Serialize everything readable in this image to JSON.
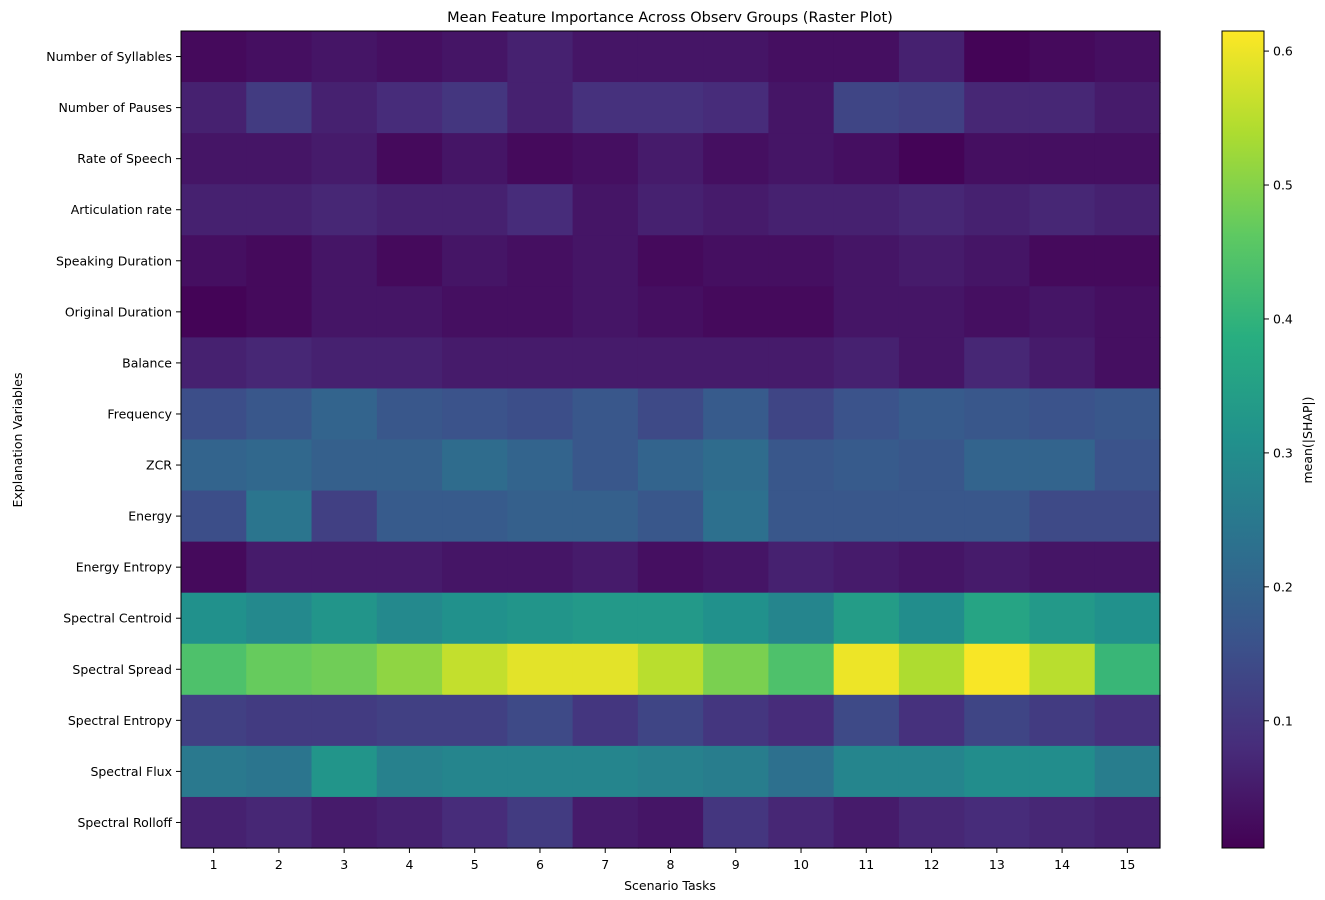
{
  "chart_data": {
    "type": "heatmap",
    "title": "Mean Feature Importance Across Observ Groups (Raster Plot)",
    "xlabel": "Scenario Tasks",
    "ylabel": "Explanation Variables",
    "colorbar_label": "mean(|SHAP|)",
    "colormap": "viridis",
    "vmin": 0.005,
    "vmax": 0.615,
    "colorbar_ticks": [
      0.1,
      0.2,
      0.3,
      0.4,
      0.5,
      0.6
    ],
    "colorbar_tick_labels": [
      "0.1",
      "0.2",
      "0.3",
      "0.4",
      "0.5",
      "0.6"
    ],
    "x": [
      "1",
      "2",
      "3",
      "4",
      "5",
      "6",
      "7",
      "8",
      "9",
      "10",
      "11",
      "12",
      "13",
      "14",
      "15"
    ],
    "y": [
      "Number of Syllables",
      "Number of Pauses",
      "Rate of Speech",
      "Articulation rate",
      "Speaking Duration",
      "Original Duration",
      "Balance",
      "Frequency",
      "ZCR",
      "Energy",
      "Energy Entropy",
      "Spectral Centroid",
      "Spectral Spread",
      "Spectral Entropy",
      "Spectral Flux",
      "Spectral Rolloff"
    ],
    "values": [
      [
        0.02,
        0.03,
        0.04,
        0.03,
        0.04,
        0.06,
        0.04,
        0.04,
        0.04,
        0.03,
        0.03,
        0.06,
        0.01,
        0.02,
        0.03
      ],
      [
        0.06,
        0.11,
        0.06,
        0.08,
        0.1,
        0.06,
        0.09,
        0.09,
        0.08,
        0.04,
        0.13,
        0.12,
        0.07,
        0.07,
        0.05
      ],
      [
        0.04,
        0.04,
        0.05,
        0.02,
        0.04,
        0.02,
        0.03,
        0.05,
        0.03,
        0.04,
        0.03,
        0.01,
        0.03,
        0.03,
        0.03
      ],
      [
        0.06,
        0.06,
        0.07,
        0.06,
        0.06,
        0.08,
        0.04,
        0.06,
        0.05,
        0.06,
        0.06,
        0.07,
        0.06,
        0.07,
        0.06
      ],
      [
        0.03,
        0.02,
        0.04,
        0.02,
        0.04,
        0.03,
        0.04,
        0.02,
        0.03,
        0.03,
        0.04,
        0.05,
        0.04,
        0.02,
        0.02
      ],
      [
        0.01,
        0.02,
        0.04,
        0.04,
        0.03,
        0.03,
        0.04,
        0.03,
        0.02,
        0.02,
        0.04,
        0.04,
        0.03,
        0.04,
        0.03
      ],
      [
        0.06,
        0.07,
        0.06,
        0.06,
        0.05,
        0.05,
        0.05,
        0.05,
        0.05,
        0.05,
        0.06,
        0.04,
        0.07,
        0.05,
        0.03
      ],
      [
        0.15,
        0.17,
        0.2,
        0.17,
        0.16,
        0.15,
        0.17,
        0.14,
        0.18,
        0.13,
        0.16,
        0.18,
        0.17,
        0.16,
        0.17
      ],
      [
        0.2,
        0.21,
        0.19,
        0.19,
        0.22,
        0.2,
        0.17,
        0.2,
        0.22,
        0.17,
        0.18,
        0.17,
        0.2,
        0.2,
        0.16
      ],
      [
        0.15,
        0.24,
        0.12,
        0.18,
        0.18,
        0.19,
        0.19,
        0.17,
        0.23,
        0.17,
        0.17,
        0.17,
        0.17,
        0.14,
        0.14
      ],
      [
        0.02,
        0.05,
        0.05,
        0.05,
        0.04,
        0.04,
        0.05,
        0.03,
        0.04,
        0.06,
        0.05,
        0.04,
        0.05,
        0.04,
        0.04
      ],
      [
        0.31,
        0.29,
        0.32,
        0.29,
        0.31,
        0.32,
        0.33,
        0.33,
        0.31,
        0.28,
        0.34,
        0.3,
        0.36,
        0.33,
        0.31
      ],
      [
        0.44,
        0.47,
        0.48,
        0.51,
        0.56,
        0.59,
        0.59,
        0.55,
        0.49,
        0.44,
        0.6,
        0.54,
        0.61,
        0.55,
        0.41
      ],
      [
        0.12,
        0.11,
        0.11,
        0.12,
        0.12,
        0.14,
        0.1,
        0.13,
        0.1,
        0.08,
        0.14,
        0.09,
        0.13,
        0.11,
        0.09
      ],
      [
        0.25,
        0.24,
        0.32,
        0.27,
        0.28,
        0.28,
        0.28,
        0.27,
        0.26,
        0.23,
        0.28,
        0.28,
        0.3,
        0.3,
        0.26
      ],
      [
        0.06,
        0.07,
        0.05,
        0.06,
        0.08,
        0.11,
        0.05,
        0.04,
        0.1,
        0.07,
        0.05,
        0.07,
        0.08,
        0.07,
        0.06
      ]
    ]
  }
}
